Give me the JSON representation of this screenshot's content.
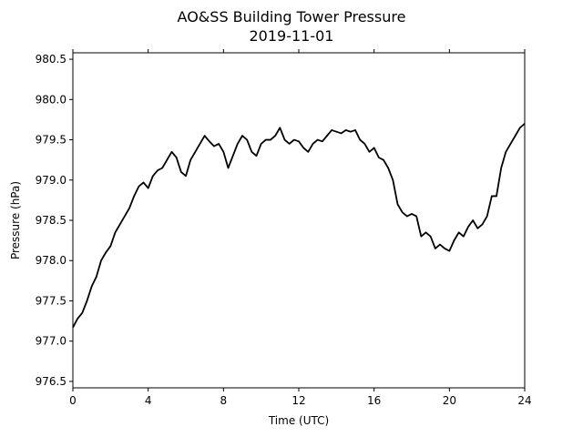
{
  "chart_data": {
    "type": "line",
    "title": "AO&SS Building Tower Pressure",
    "subtitle": "2019-11-01",
    "xlabel": "Time (UTC)",
    "ylabel": "Pressure (hPa)",
    "xlim": [
      0,
      24
    ],
    "ylim": [
      976.42,
      980.58
    ],
    "xticks": [
      0,
      4,
      8,
      12,
      16,
      20,
      24
    ],
    "xtick_labels": [
      "0",
      "4",
      "8",
      "12",
      "16",
      "20",
      "24"
    ],
    "yticks": [
      976.5,
      977.0,
      977.5,
      978.0,
      978.5,
      979.0,
      979.5,
      980.0,
      980.5
    ],
    "ytick_labels": [
      "976.5",
      "977.0",
      "977.5",
      "978.0",
      "978.5",
      "979.0",
      "979.5",
      "980.0",
      "980.5"
    ],
    "grid": false,
    "legend": "none",
    "line_color": "#000000",
    "series": [
      {
        "x": [
          0,
          0.25,
          0.5,
          0.75,
          1.0,
          1.25,
          1.5,
          1.75,
          2.0,
          2.25,
          2.5,
          2.75,
          3.0,
          3.25,
          3.5,
          3.75,
          4.0,
          4.25,
          4.5,
          4.75,
          5.0,
          5.25,
          5.5,
          5.75,
          6.0,
          6.25,
          6.5,
          6.75,
          7.0,
          7.25,
          7.5,
          7.75,
          8.0,
          8.25,
          8.5,
          8.75,
          9.0,
          9.25,
          9.5,
          9.75,
          10.0,
          10.25,
          10.5,
          10.75,
          11.0,
          11.25,
          11.5,
          11.75,
          12.0,
          12.25,
          12.5,
          12.75,
          13.0,
          13.25,
          13.5,
          13.75,
          14.0,
          14.25,
          14.5,
          14.75,
          15.0,
          15.25,
          15.5,
          15.75,
          16.0,
          16.25,
          16.5,
          16.75,
          17.0,
          17.25,
          17.5,
          17.75,
          18.0,
          18.25,
          18.5,
          18.75,
          19.0,
          19.25,
          19.5,
          19.75,
          20.0,
          20.25,
          20.5,
          20.75,
          21.0,
          21.25,
          21.5,
          21.75,
          22.0,
          22.25,
          22.5,
          22.75,
          23.0,
          23.25,
          23.5,
          23.75,
          24.0
        ],
        "y": [
          977.17,
          977.28,
          977.35,
          977.5,
          977.68,
          977.8,
          978.0,
          978.1,
          978.18,
          978.35,
          978.45,
          978.55,
          978.65,
          978.8,
          978.92,
          978.97,
          978.9,
          979.05,
          979.12,
          979.15,
          979.25,
          979.35,
          979.28,
          979.1,
          979.05,
          979.25,
          979.35,
          979.45,
          979.55,
          979.48,
          979.42,
          979.45,
          979.35,
          979.15,
          979.3,
          979.45,
          979.55,
          979.5,
          979.35,
          979.3,
          979.45,
          979.5,
          979.5,
          979.55,
          979.65,
          979.5,
          979.45,
          979.5,
          979.48,
          979.4,
          979.35,
          979.45,
          979.5,
          979.48,
          979.55,
          979.62,
          979.6,
          979.58,
          979.62,
          979.6,
          979.62,
          979.5,
          979.45,
          979.35,
          979.4,
          979.28,
          979.25,
          979.15,
          979.0,
          978.7,
          978.6,
          978.55,
          978.58,
          978.55,
          978.3,
          978.35,
          978.3,
          978.15,
          978.2,
          978.15,
          978.12,
          978.25,
          978.35,
          978.3,
          978.42,
          978.5,
          978.4,
          978.45,
          978.55,
          978.8,
          978.8,
          979.15,
          979.35,
          979.45,
          979.55,
          979.65,
          979.7
        ]
      }
    ]
  }
}
